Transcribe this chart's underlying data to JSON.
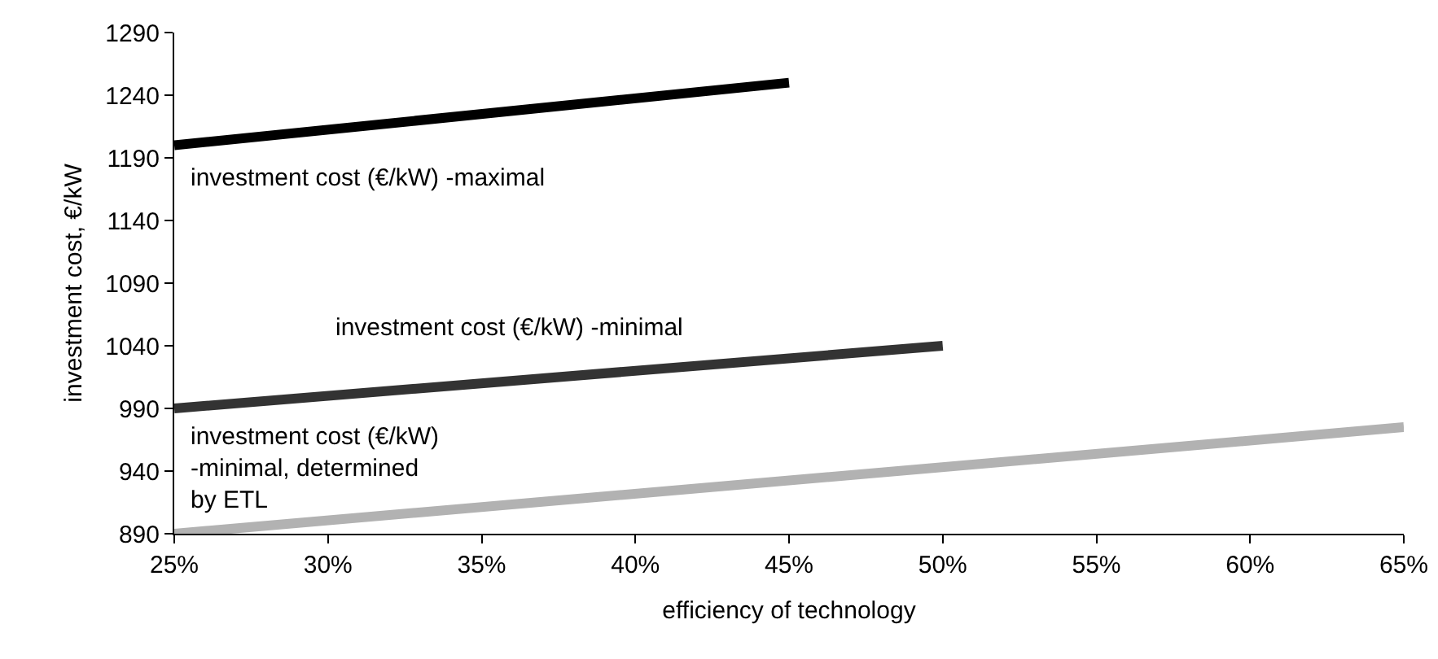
{
  "chart_data": {
    "type": "line",
    "xlabel": "efficiency of technology",
    "ylabel": "investment cost, €/kW",
    "xlim": [
      25,
      65
    ],
    "xticks": [
      {
        "value": 25,
        "label": "25%"
      },
      {
        "value": 30,
        "label": "30%"
      },
      {
        "value": 35,
        "label": "35%"
      },
      {
        "value": 40,
        "label": "40%"
      },
      {
        "value": 45,
        "label": "45%"
      },
      {
        "value": 50,
        "label": "50%"
      },
      {
        "value": 55,
        "label": "55%"
      },
      {
        "value": 60,
        "label": "60%"
      },
      {
        "value": 65,
        "label": "65%"
      }
    ],
    "ylim": [
      890,
      1290
    ],
    "yticks": [
      890,
      940,
      990,
      1040,
      1090,
      1140,
      1190,
      1240,
      1290
    ],
    "grid": false,
    "legend": false,
    "marker": "none",
    "line_style": "solid",
    "series": [
      {
        "name": "investment cost (€/kW) -maximal",
        "color": "#000000",
        "x": [
          25,
          45
        ],
        "values": [
          1200,
          1250
        ]
      },
      {
        "name": "investment cost (€/kW) -minimal",
        "color": "#333333",
        "x": [
          25,
          50
        ],
        "values": [
          990,
          1040
        ]
      },
      {
        "name": "investment cost (€/kW) -minimal, determined by ETL",
        "color": "#b2b2b2",
        "x": [
          25,
          65
        ],
        "values": [
          890,
          975
        ]
      }
    ]
  }
}
